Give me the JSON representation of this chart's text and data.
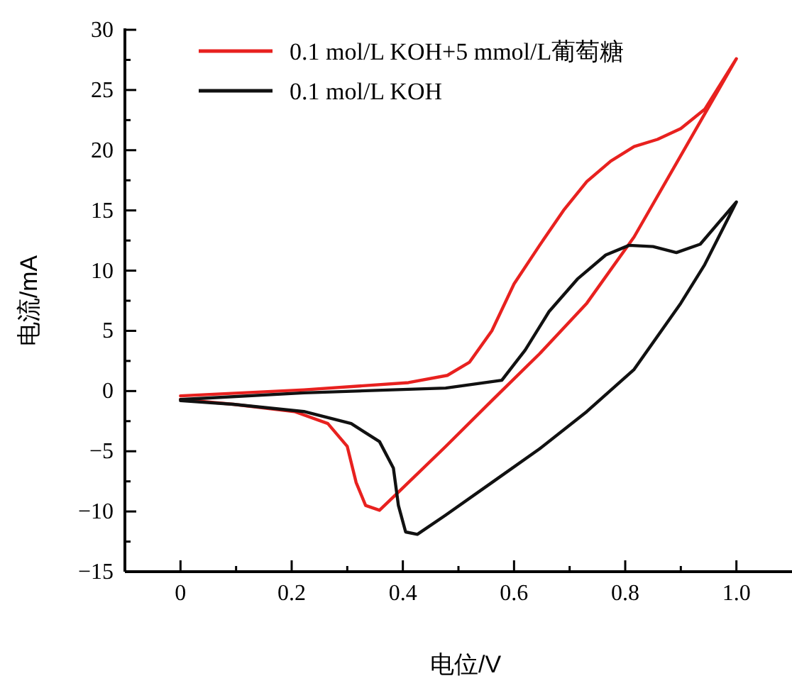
{
  "chart_data": {
    "type": "line",
    "xlabel": "电位/V",
    "ylabel": "电流/mA",
    "xlim": [
      -0.1,
      1.1
    ],
    "ylim": [
      -15,
      30
    ],
    "xticks": [
      0,
      {
        "value": 0.1,
        "label": null
      },
      0.2,
      {
        "value": 0.3,
        "label": null
      },
      0.4,
      {
        "value": 0.5,
        "label": null
      },
      0.6,
      {
        "value": 0.7,
        "label": null
      },
      0.8,
      {
        "value": 0.9,
        "label": null
      },
      {
        "value": 1,
        "label": "1.0"
      }
    ],
    "yticks": [
      -15,
      {
        "value": -12.5,
        "label": null
      },
      -10,
      {
        "value": -7.5,
        "label": null
      },
      -5,
      {
        "value": -2.5,
        "label": null
      },
      0,
      {
        "value": 2.5,
        "label": null
      },
      5,
      {
        "value": 7.5,
        "label": null
      },
      10,
      {
        "value": 12.5,
        "label": null
      },
      15,
      {
        "value": 17.5,
        "label": null
      },
      20,
      {
        "value": 22.5,
        "label": null
      },
      25,
      {
        "value": 27.5,
        "label": null
      },
      30
    ],
    "legend": "top",
    "grid": false,
    "marker": "none",
    "line_style": "solid",
    "series": [
      {
        "name": "0.1 mol/L KOH+5 mmol/L葡萄糖",
        "color": "#e8211f",
        "x": [
          0,
          0.222,
          0.41,
          0.48,
          0.52,
          0.56,
          0.6,
          0.646,
          0.689,
          0.731,
          0.774,
          0.816,
          0.858,
          0.9,
          0.943,
          1.0,
          0.816,
          0.731,
          0.646,
          0.56,
          0.477,
          0.392,
          0.358,
          0.333,
          0.316,
          0.3,
          0.265,
          0.205,
          0.095,
          0
        ],
        "values": [
          -0.4,
          0.1,
          0.7,
          1.3,
          2.4,
          5.0,
          8.9,
          12.1,
          15.0,
          17.4,
          19.1,
          20.3,
          20.9,
          21.8,
          23.4,
          27.6,
          12.8,
          7.3,
          3.1,
          -0.8,
          -4.6,
          -8.4,
          -9.9,
          -9.5,
          -7.6,
          -4.6,
          -2.7,
          -1.7,
          -1.1,
          -0.7
        ]
      },
      {
        "name": "0.1 mol/L KOH",
        "color": "#111111",
        "x": [
          0,
          0.222,
          0.477,
          0.578,
          0.62,
          0.663,
          0.714,
          0.765,
          0.807,
          0.85,
          0.892,
          0.935,
          1.0,
          0.943,
          0.9,
          0.816,
          0.731,
          0.646,
          0.56,
          0.477,
          0.426,
          0.405,
          0.392,
          0.383,
          0.358,
          0.307,
          0.222,
          0.095,
          0
        ],
        "values": [
          -0.7,
          -0.15,
          0.25,
          0.9,
          3.4,
          6.6,
          9.3,
          11.3,
          12.1,
          12.0,
          11.5,
          12.2,
          15.7,
          10.5,
          7.3,
          1.8,
          -1.7,
          -4.8,
          -7.6,
          -10.3,
          -11.9,
          -11.7,
          -9.5,
          -6.4,
          -4.2,
          -2.7,
          -1.7,
          -1.1,
          -0.8
        ]
      }
    ]
  }
}
